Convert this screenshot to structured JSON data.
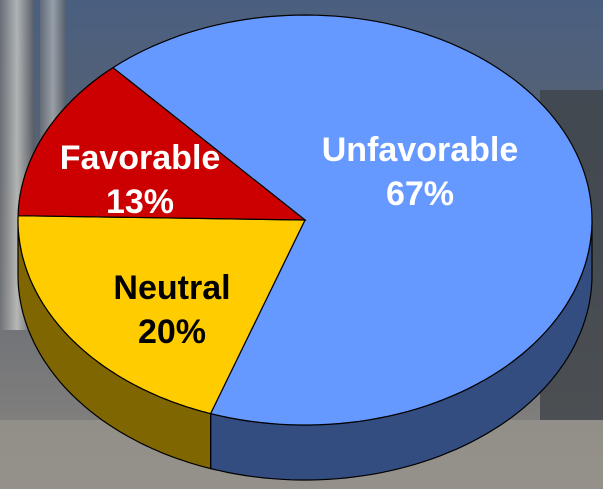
{
  "chart_data": {
    "type": "pie",
    "categories": [
      "Unfavorable",
      "Neutral",
      "Favorable"
    ],
    "values": [
      67,
      20,
      13
    ],
    "value_labels": [
      "67%",
      "20%",
      "13%"
    ],
    "colors": [
      "#6699ff",
      "#ffcc00",
      "#cc0000"
    ]
  }
}
